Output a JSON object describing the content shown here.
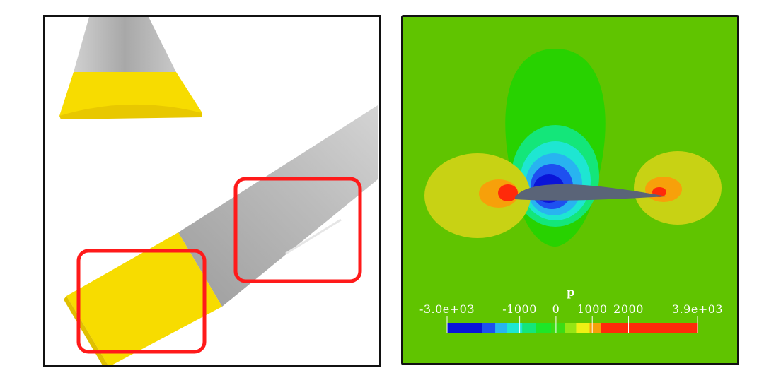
{
  "left_panel": {
    "highlight_color": "#ff1a1a",
    "wing_root_color": "#f5d800",
    "wing_color": "#b5b5b5"
  },
  "right_panel": {
    "background_color": "#60c400",
    "colorbar": {
      "title": "p",
      "tick_labels": [
        "-3.0e+03",
        "-1000",
        "0",
        "1000",
        "2000",
        "3.9e+03"
      ],
      "range": [
        -3000,
        3900
      ],
      "colors": [
        "#0a14d8",
        "#1e50f0",
        "#28b4f0",
        "#1ee6d2",
        "#14e67a",
        "#1ee628",
        "#3cdc14",
        "#96e614",
        "#f0f014",
        "#f7a00a",
        "#ff2a0a"
      ]
    }
  }
}
